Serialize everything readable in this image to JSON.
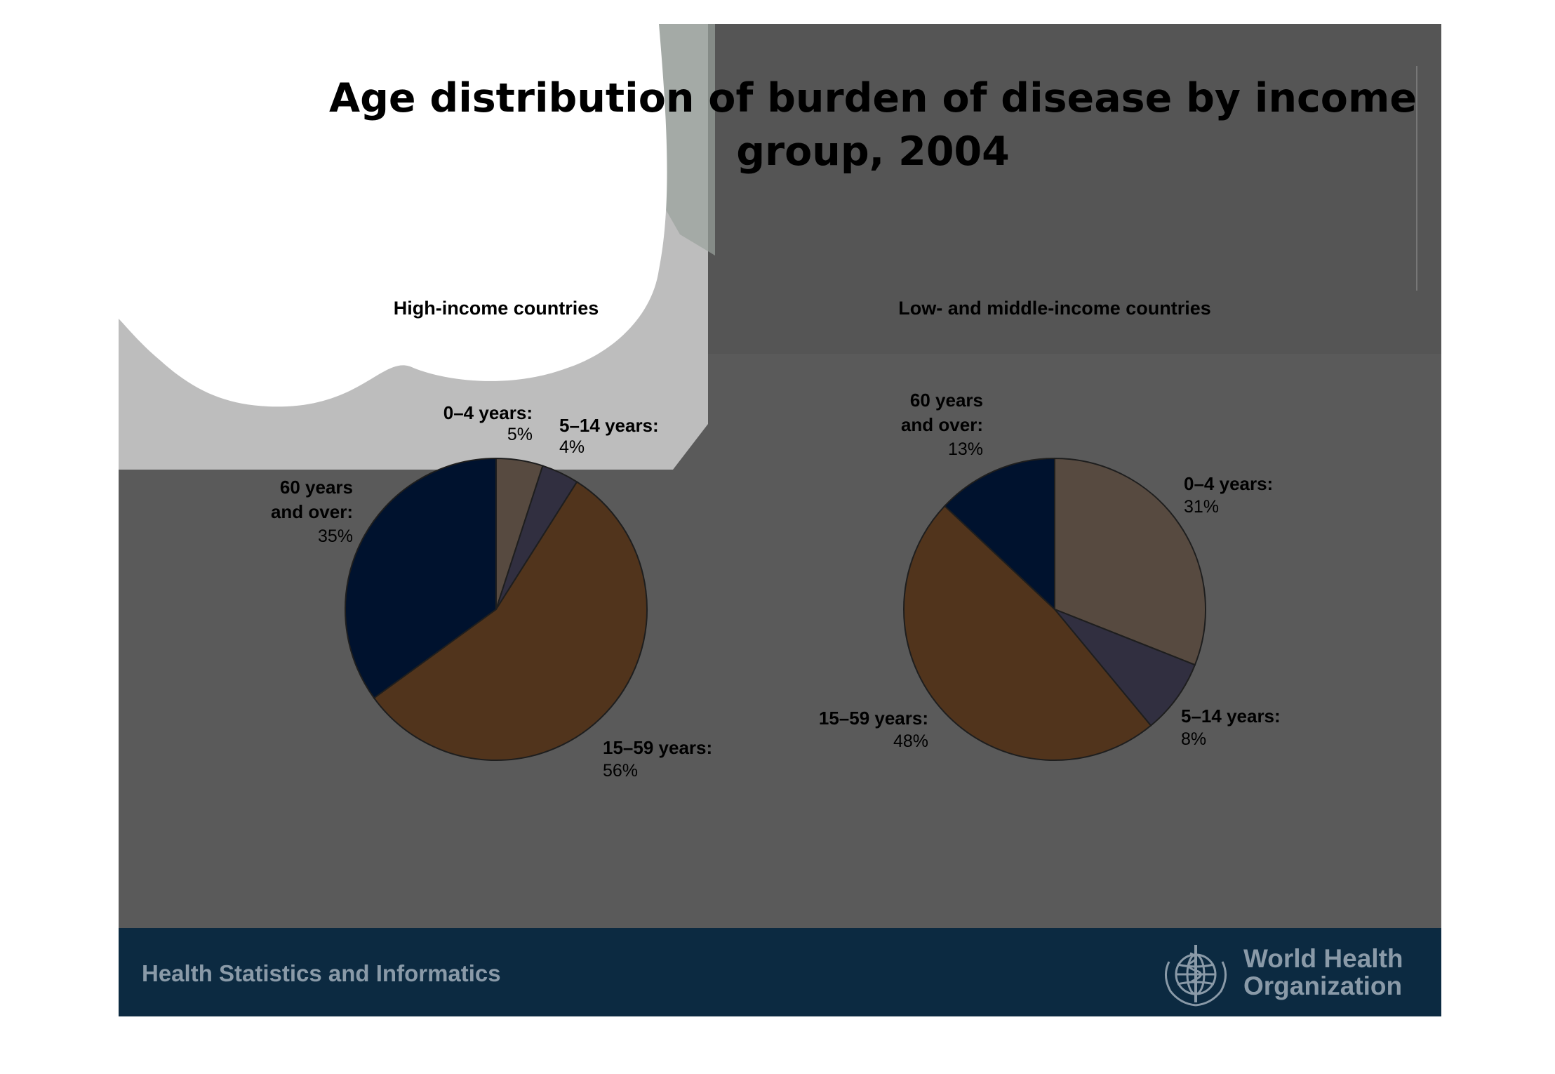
{
  "title": {
    "line1": "Age distribution of burden of disease by income",
    "line2": "group, 2004"
  },
  "footer": {
    "text": "Health Statistics and Informatics",
    "logo_line1": "World Health",
    "logo_line2": "Organization",
    "logo_icon": "who-emblem-icon"
  },
  "colors": {
    "slide_bg": "#5a5a5a",
    "footer_bg": "#0c2a41",
    "age_0_4": "#574a40",
    "age_5_14": "#312f40",
    "age_15_59": "#51341c",
    "age_60_plus": "#00122e"
  },
  "chart_data": [
    {
      "type": "pie",
      "title": "High-income countries",
      "slices": [
        {
          "label_line1": "0–4 years:",
          "label_line2": "",
          "value": 5,
          "value_text": "5%"
        },
        {
          "label_line1": "5–14 years:",
          "label_line2": "",
          "value": 4,
          "value_text": "4%"
        },
        {
          "label_line1": "15–59 years:",
          "label_line2": "",
          "value": 56,
          "value_text": "56%"
        },
        {
          "label_line1": "60 years",
          "label_line2": "and over:",
          "value": 35,
          "value_text": "35%"
        }
      ]
    },
    {
      "type": "pie",
      "title": "Low- and middle-income countries",
      "slices": [
        {
          "label_line1": "0–4 years:",
          "label_line2": "",
          "value": 31,
          "value_text": "31%"
        },
        {
          "label_line1": "5–14 years:",
          "label_line2": "",
          "value": 8,
          "value_text": "8%"
        },
        {
          "label_line1": "15–59 years:",
          "label_line2": "",
          "value": 48,
          "value_text": "48%"
        },
        {
          "label_line1": "60 years",
          "label_line2": "and over:",
          "value": 13,
          "value_text": "13%"
        }
      ]
    }
  ]
}
